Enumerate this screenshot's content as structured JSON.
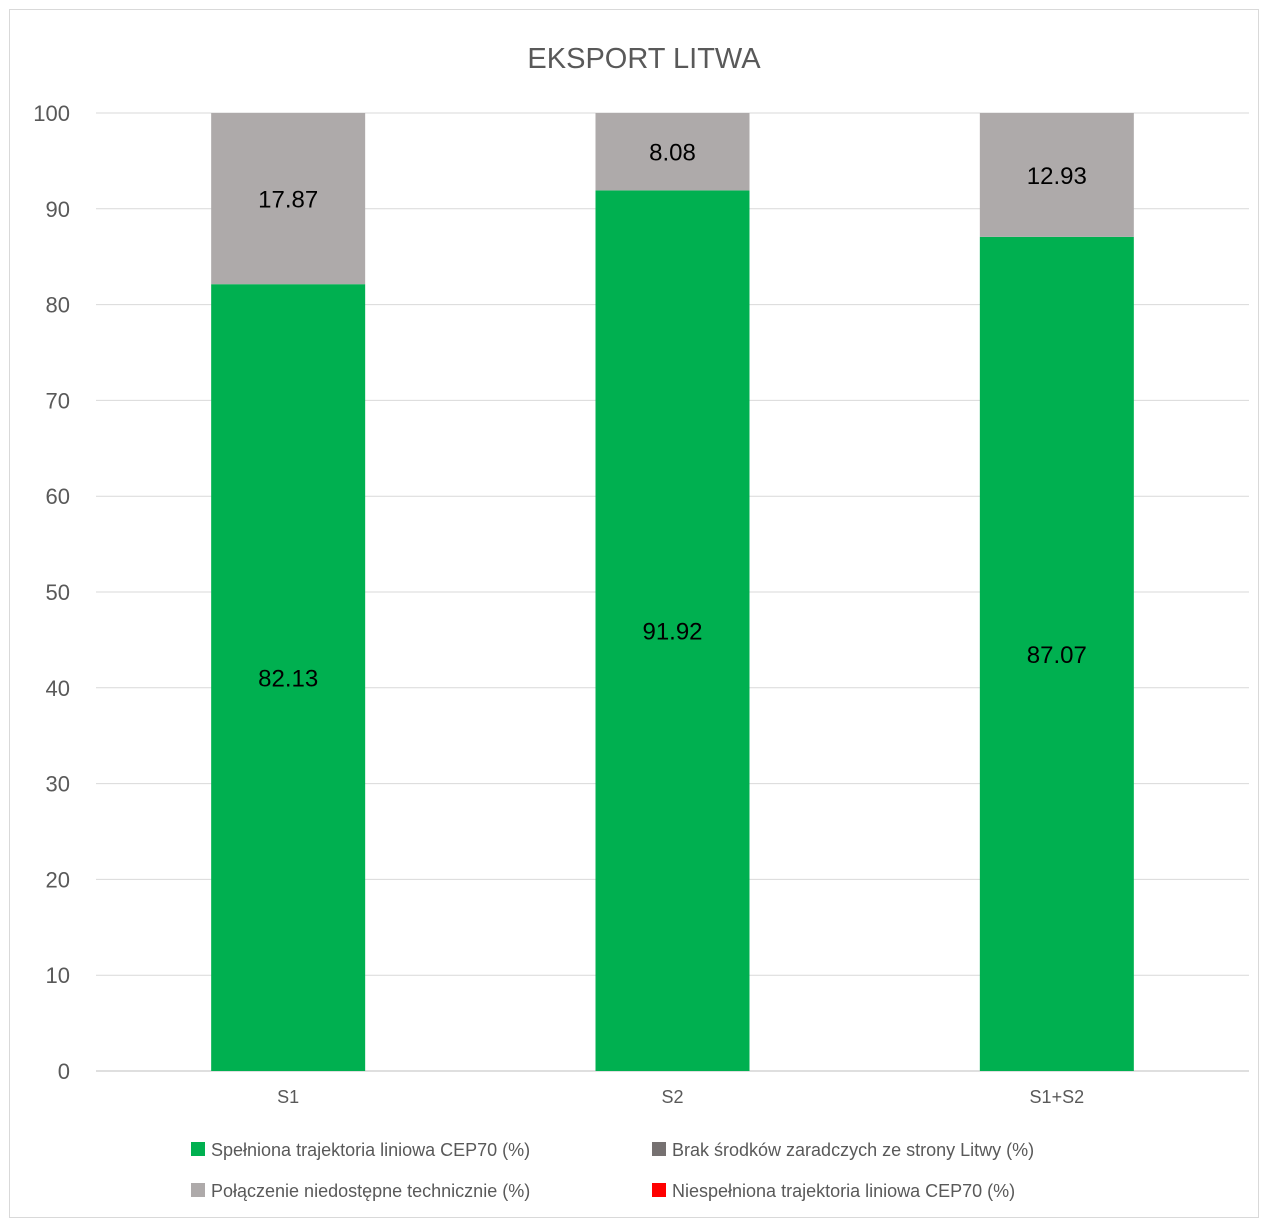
{
  "chart_data": {
    "type": "bar",
    "stacked": true,
    "title": "EKSPORT LITWA",
    "xlabel": "",
    "ylabel": "",
    "categories": [
      "S1",
      "S2",
      "S1+S2"
    ],
    "ylim": [
      0,
      100
    ],
    "yticks": [
      0,
      10,
      20,
      30,
      40,
      50,
      60,
      70,
      80,
      90,
      100
    ],
    "grid": true,
    "legend_position": "bottom",
    "series": [
      {
        "name": "Spełniona trajektoria liniowa CEP70 (%)",
        "values": [
          82.13,
          91.92,
          87.07
        ],
        "color": "#00b050",
        "labels": [
          "82.13",
          "91.92",
          "87.07"
        ]
      },
      {
        "name": "Brak środków zaradczych ze strony Litwy (%)",
        "values": [
          0,
          0,
          0
        ],
        "color": "#767171",
        "labels": []
      },
      {
        "name": "Połączenie niedostępne technicznie (%)",
        "values": [
          17.87,
          8.08,
          12.93
        ],
        "color": "#aeaaaa",
        "labels": [
          "17.87",
          "8.08",
          "12.93"
        ]
      },
      {
        "name": "Niespełniona trajektoria liniowa CEP70 (%)",
        "values": [
          0,
          0,
          0
        ],
        "color": "#ff0000",
        "labels": []
      }
    ],
    "legend_order": [
      0,
      1,
      2,
      3
    ]
  }
}
